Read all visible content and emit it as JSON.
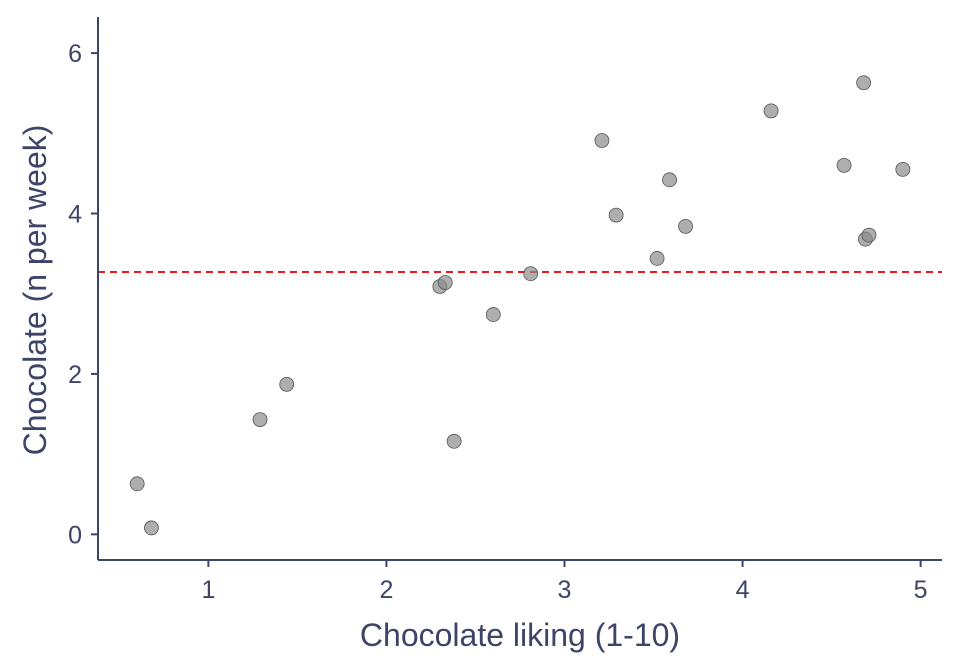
{
  "chart_data": {
    "type": "scatter",
    "xlabel": "Chocolate liking (1-10)",
    "ylabel": "Chocolate (n per week)",
    "xlim": [
      0.38,
      5.12
    ],
    "ylim": [
      -0.32,
      6.45
    ],
    "xticks": [
      1,
      2,
      3,
      4,
      5
    ],
    "yticks": [
      0,
      2,
      4,
      6
    ],
    "grid": false,
    "legend": "none",
    "point_color": "#8c8c8c",
    "reference_line": {
      "y": 3.27,
      "color": "#e41a1c",
      "style": "dashed"
    },
    "points": [
      {
        "x": 0.6,
        "y": 0.63
      },
      {
        "x": 0.68,
        "y": 0.08
      },
      {
        "x": 1.29,
        "y": 1.43
      },
      {
        "x": 1.44,
        "y": 1.87
      },
      {
        "x": 2.3,
        "y": 3.09
      },
      {
        "x": 2.33,
        "y": 3.14
      },
      {
        "x": 2.38,
        "y": 1.16
      },
      {
        "x": 2.6,
        "y": 2.74
      },
      {
        "x": 2.81,
        "y": 3.25
      },
      {
        "x": 3.21,
        "y": 4.91
      },
      {
        "x": 3.29,
        "y": 3.98
      },
      {
        "x": 3.52,
        "y": 3.44
      },
      {
        "x": 3.59,
        "y": 4.42
      },
      {
        "x": 3.68,
        "y": 3.84
      },
      {
        "x": 4.16,
        "y": 5.28
      },
      {
        "x": 4.57,
        "y": 4.6
      },
      {
        "x": 4.68,
        "y": 5.63
      },
      {
        "x": 4.69,
        "y": 3.68
      },
      {
        "x": 4.71,
        "y": 3.73
      },
      {
        "x": 4.9,
        "y": 4.55
      }
    ]
  }
}
